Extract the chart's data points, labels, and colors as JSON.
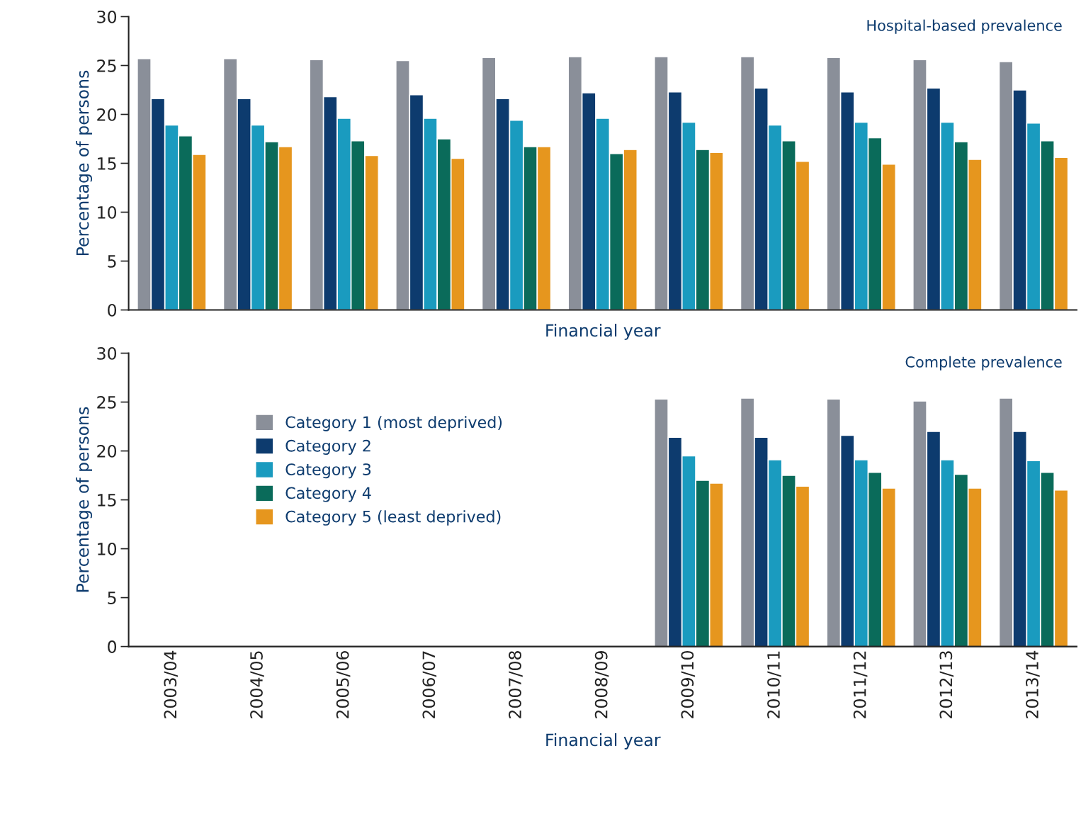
{
  "chart_data": [
    {
      "type": "bar",
      "title": "Hospital-based prevalence",
      "xlabel": "Financial year",
      "ylabel": "Percentage of persons",
      "categories": [
        "2003/04",
        "2004/05",
        "2005/06",
        "2006/07",
        "2007/08",
        "2008/09",
        "2009/10",
        "2010/11",
        "2011/12",
        "2012/13",
        "2013/14"
      ],
      "series": [
        {
          "color": "#8a8f99",
          "values": [
            25.7,
            25.7,
            25.6,
            25.5,
            25.8,
            25.9,
            25.9,
            25.9,
            25.8,
            25.6,
            25.4
          ]
        },
        {
          "color": "#0d3b6e",
          "values": [
            21.6,
            21.6,
            21.8,
            22.0,
            21.6,
            22.2,
            22.3,
            22.7,
            22.3,
            22.7,
            22.5
          ]
        },
        {
          "color": "#1a9bbf",
          "values": [
            18.9,
            18.9,
            19.6,
            19.6,
            19.4,
            19.6,
            19.2,
            18.9,
            19.2,
            19.2,
            19.1
          ]
        },
        {
          "color": "#0a6b5a",
          "values": [
            17.8,
            17.2,
            17.3,
            17.5,
            16.7,
            16.0,
            16.4,
            17.3,
            17.6,
            17.2,
            17.3
          ]
        },
        {
          "color": "#e6961e",
          "values": [
            15.9,
            16.7,
            15.8,
            15.5,
            16.7,
            16.4,
            16.1,
            15.2,
            14.9,
            15.4,
            15.6
          ]
        }
      ],
      "ylim": [
        0,
        30
      ],
      "yticks": [
        0,
        5,
        10,
        15,
        20,
        25,
        30
      ],
      "tick_labels": "y",
      "grid": false,
      "legend": false
    },
    {
      "type": "bar",
      "title": "Complete prevalence",
      "xlabel": "Financial year",
      "ylabel": "Percentage of persons",
      "categories": [
        "2003/04",
        "2004/05",
        "2005/06",
        "2006/07",
        "2007/08",
        "2008/09",
        "2009/10",
        "2010/11",
        "2011/12",
        "2012/13",
        "2013/14"
      ],
      "series": [
        {
          "name": "Category 1 (most deprived)",
          "color": "#8a8f99",
          "values": [
            null,
            null,
            null,
            null,
            null,
            null,
            25.3,
            25.4,
            25.3,
            25.1,
            25.4
          ]
        },
        {
          "name": "Category 2",
          "color": "#0d3b6e",
          "values": [
            null,
            null,
            null,
            null,
            null,
            null,
            21.4,
            21.4,
            21.6,
            22.0,
            22.0
          ]
        },
        {
          "name": "Category 3",
          "color": "#1a9bbf",
          "values": [
            null,
            null,
            null,
            null,
            null,
            null,
            19.5,
            19.1,
            19.1,
            19.1,
            19.0
          ]
        },
        {
          "name": "Category 4",
          "color": "#0a6b5a",
          "values": [
            null,
            null,
            null,
            null,
            null,
            null,
            17.0,
            17.5,
            17.8,
            17.6,
            17.8
          ]
        },
        {
          "name": "Category 5 (least deprived)",
          "color": "#e6961e",
          "values": [
            null,
            null,
            null,
            null,
            null,
            null,
            16.7,
            16.4,
            16.2,
            16.2,
            16.0
          ]
        }
      ],
      "ylim": [
        0,
        30
      ],
      "yticks": [
        0,
        5,
        10,
        15,
        20,
        25,
        30
      ],
      "grid": false,
      "legend": "left"
    }
  ]
}
